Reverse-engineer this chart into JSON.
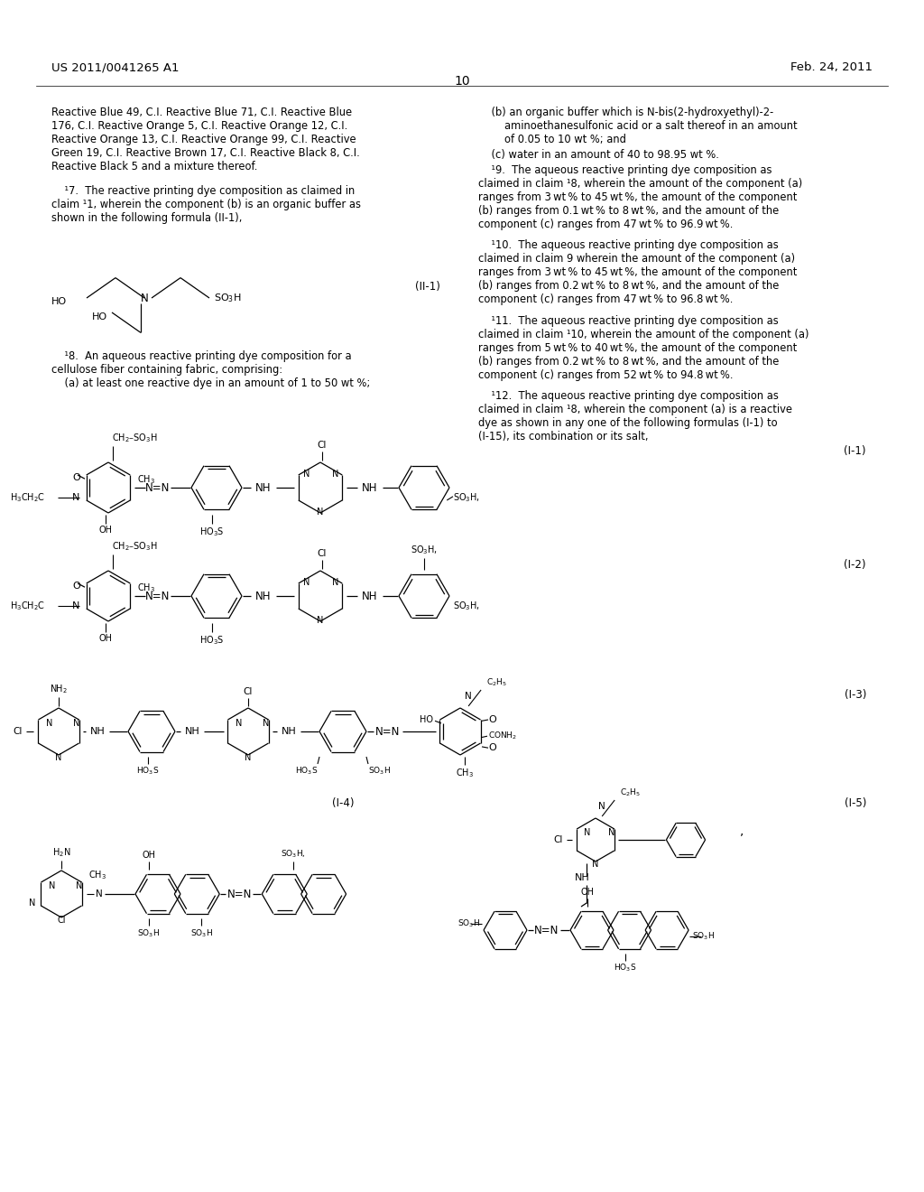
{
  "page_number": "10",
  "header_left": "US 2011/0041265 A1",
  "header_right": "Feb. 24, 2011",
  "background_color": "#ffffff",
  "text_color": "#000000",
  "figsize": [
    10.24,
    13.2
  ],
  "dpi": 100
}
